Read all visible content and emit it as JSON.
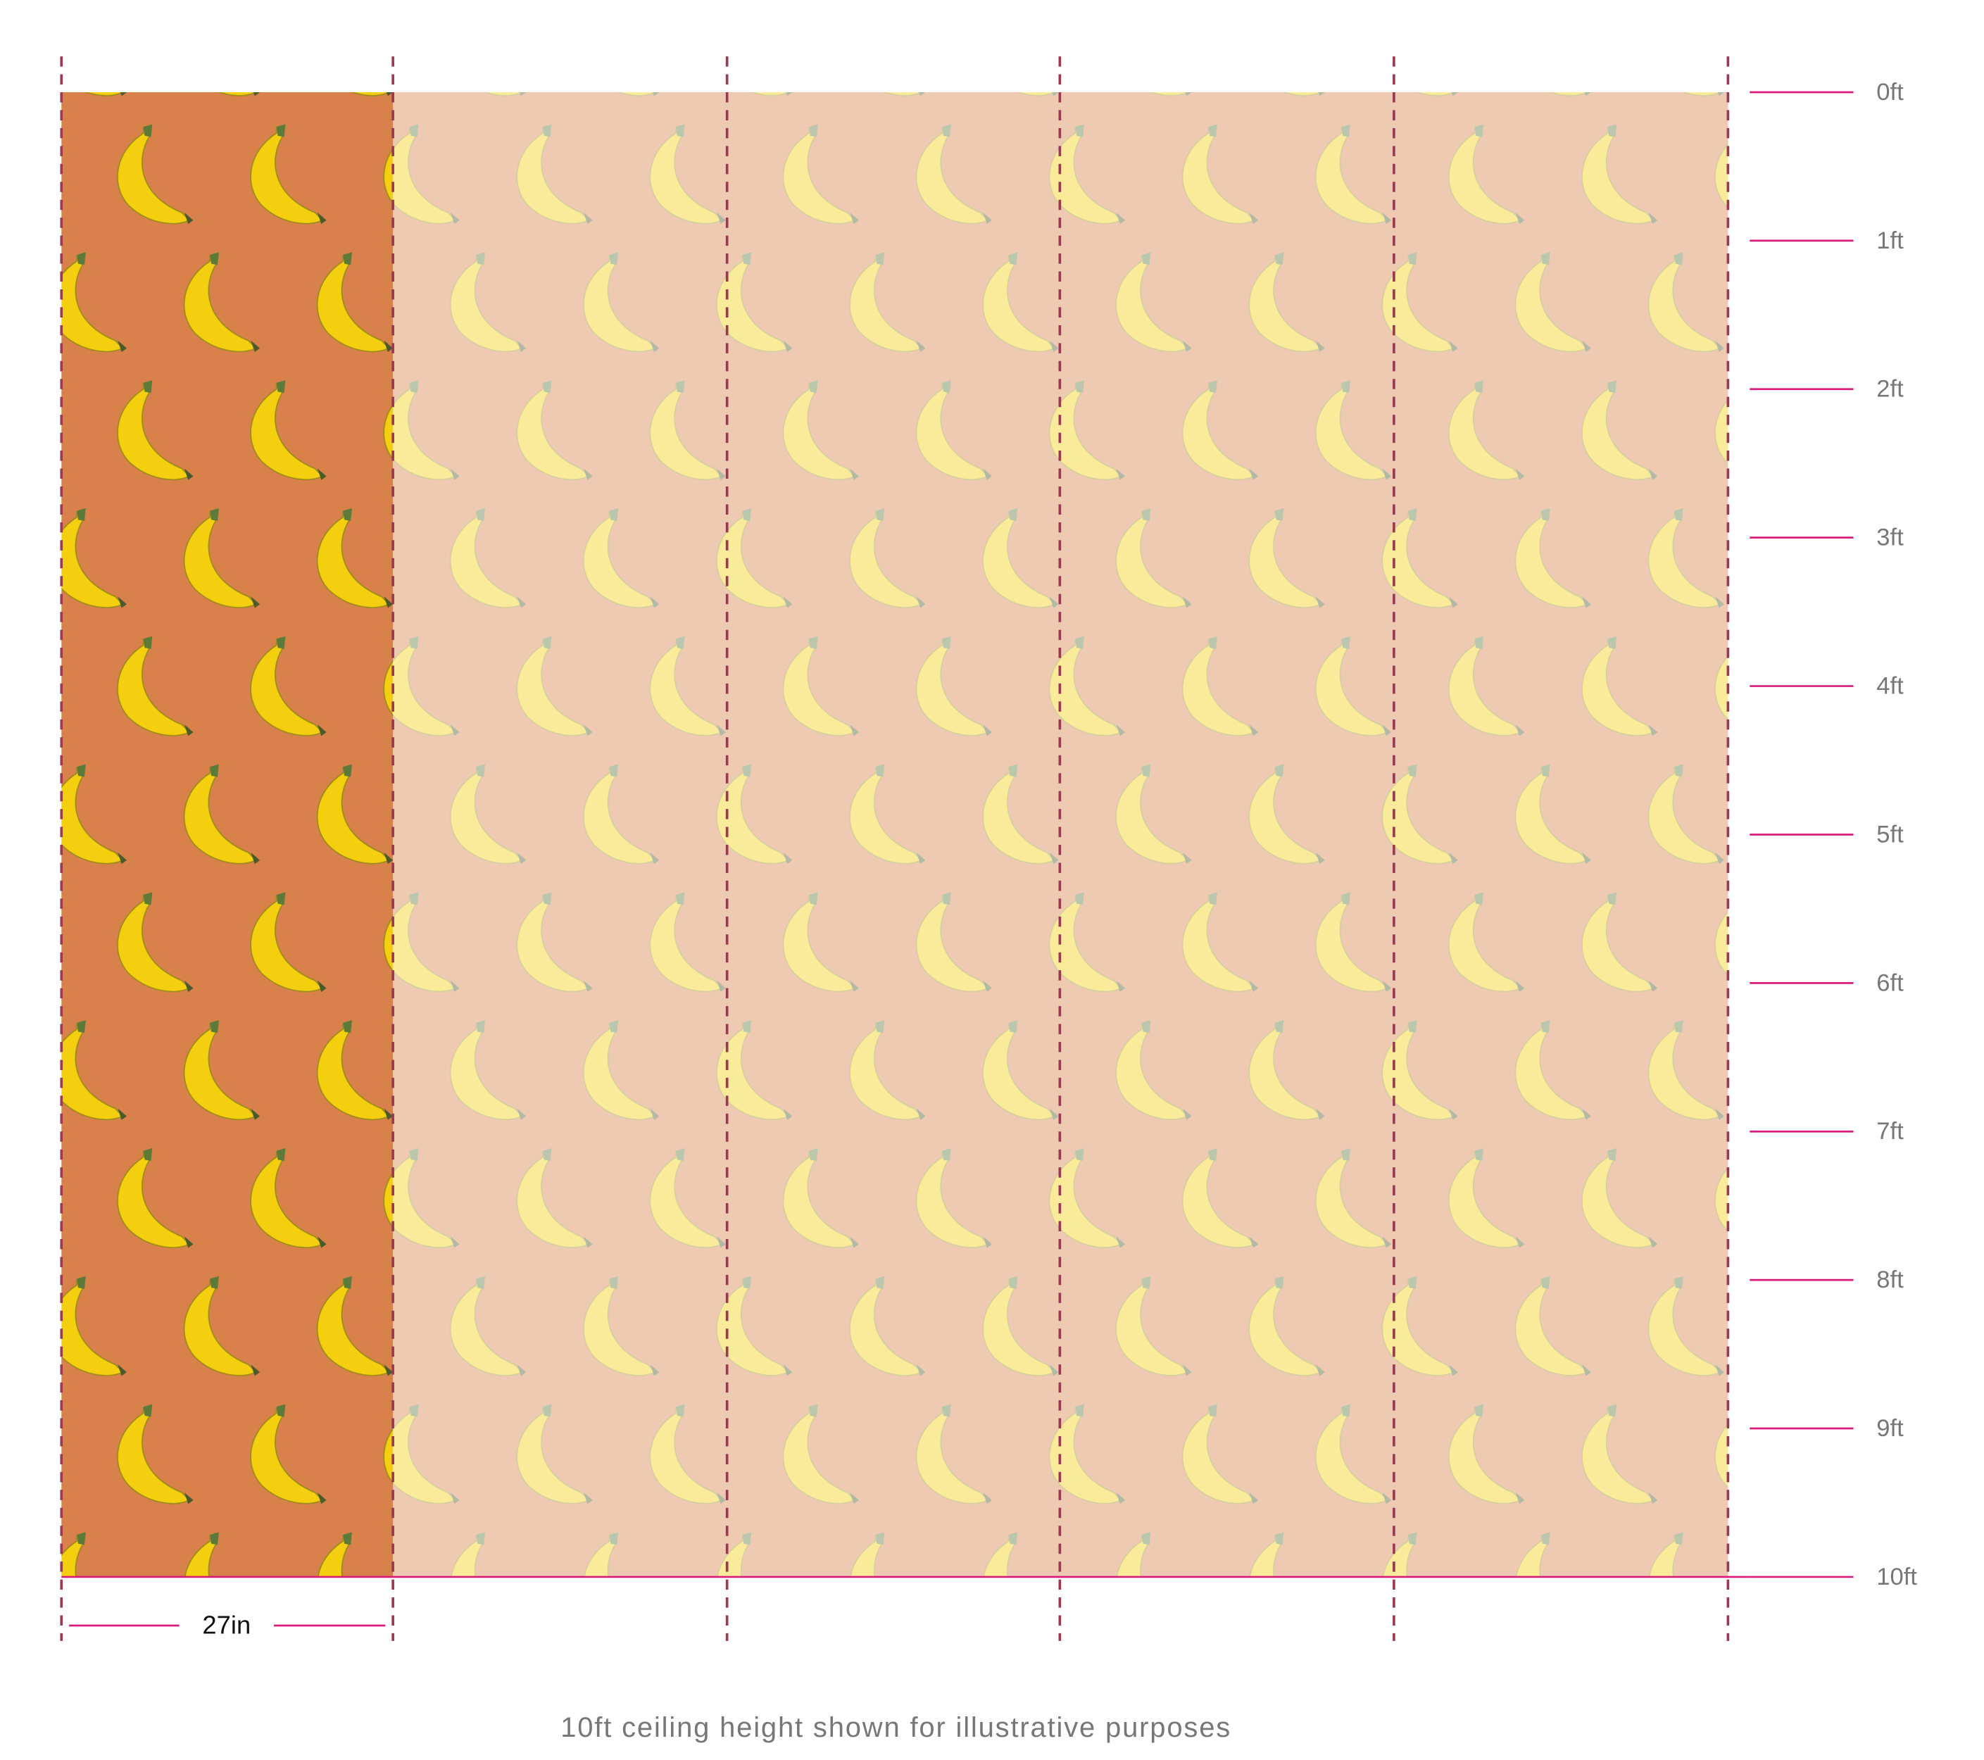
{
  "ruler": {
    "labels": [
      "0ft",
      "1ft",
      "2ft",
      "3ft",
      "4ft",
      "5ft",
      "6ft",
      "7ft",
      "8ft",
      "9ft",
      "10ft"
    ]
  },
  "panel_width": "27in",
  "caption": "10ft ceiling height shown for illustrative purposes"
}
